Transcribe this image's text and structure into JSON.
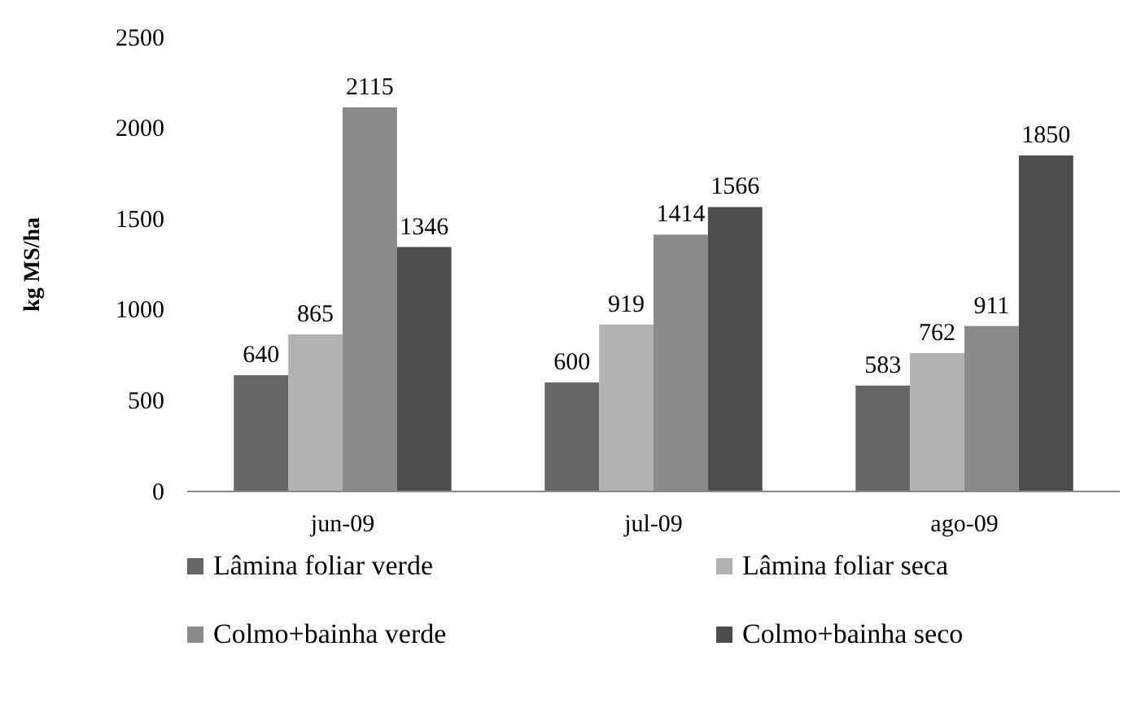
{
  "chart_data": {
    "type": "bar",
    "ylabel": "kg MS/ha",
    "categories": [
      "jun-09",
      "jul-09",
      "ago-09"
    ],
    "series": [
      {
        "name": "Lâmina foliar verde",
        "color": "#666666",
        "values": [
          640,
          600,
          583
        ]
      },
      {
        "name": "Lâmina foliar seca",
        "color": "#b2b2b2",
        "values": [
          865,
          919,
          762
        ]
      },
      {
        "name": "Colmo+bainha verde",
        "color": "#8a8a8a",
        "values": [
          2115,
          1414,
          911
        ]
      },
      {
        "name": "Colmo+bainha seco",
        "color": "#4d4d4d",
        "values": [
          1346,
          1566,
          1850
        ]
      }
    ],
    "ylim": [
      0,
      2500
    ],
    "yticks": [
      0,
      500,
      1000,
      1500,
      2000,
      2500
    ],
    "data_labels": true,
    "legend": "bottom"
  }
}
